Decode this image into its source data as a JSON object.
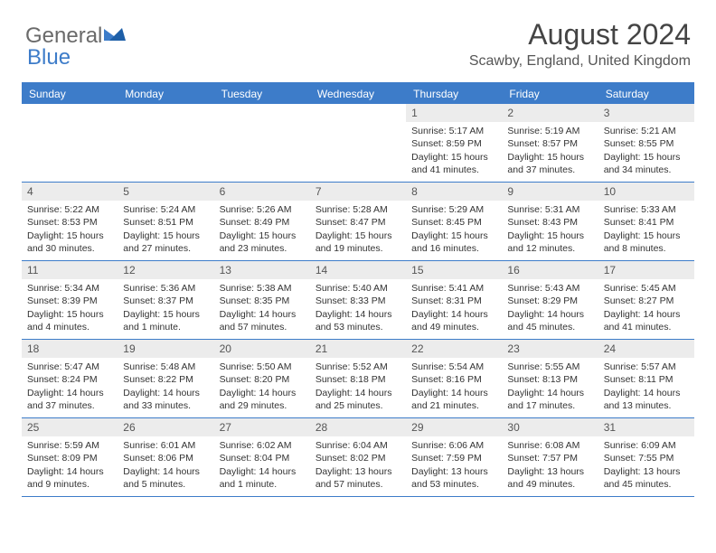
{
  "brand": {
    "part1": "General",
    "part2": "Blue"
  },
  "title": "August 2024",
  "location": "Scawby, England, United Kingdom",
  "colors": {
    "accent": "#3d7cc9",
    "text": "#333333",
    "muted": "#6a6a6a",
    "dayNumBg": "#ececec",
    "background": "#ffffff"
  },
  "daysOfWeek": [
    "Sunday",
    "Monday",
    "Tuesday",
    "Wednesday",
    "Thursday",
    "Friday",
    "Saturday"
  ],
  "weeks": [
    [
      {
        "empty": true
      },
      {
        "empty": true
      },
      {
        "empty": true
      },
      {
        "empty": true
      },
      {
        "num": "1",
        "sunrise": "Sunrise: 5:17 AM",
        "sunset": "Sunset: 8:59 PM",
        "daylight": "Daylight: 15 hours and 41 minutes."
      },
      {
        "num": "2",
        "sunrise": "Sunrise: 5:19 AM",
        "sunset": "Sunset: 8:57 PM",
        "daylight": "Daylight: 15 hours and 37 minutes."
      },
      {
        "num": "3",
        "sunrise": "Sunrise: 5:21 AM",
        "sunset": "Sunset: 8:55 PM",
        "daylight": "Daylight: 15 hours and 34 minutes."
      }
    ],
    [
      {
        "num": "4",
        "sunrise": "Sunrise: 5:22 AM",
        "sunset": "Sunset: 8:53 PM",
        "daylight": "Daylight: 15 hours and 30 minutes."
      },
      {
        "num": "5",
        "sunrise": "Sunrise: 5:24 AM",
        "sunset": "Sunset: 8:51 PM",
        "daylight": "Daylight: 15 hours and 27 minutes."
      },
      {
        "num": "6",
        "sunrise": "Sunrise: 5:26 AM",
        "sunset": "Sunset: 8:49 PM",
        "daylight": "Daylight: 15 hours and 23 minutes."
      },
      {
        "num": "7",
        "sunrise": "Sunrise: 5:28 AM",
        "sunset": "Sunset: 8:47 PM",
        "daylight": "Daylight: 15 hours and 19 minutes."
      },
      {
        "num": "8",
        "sunrise": "Sunrise: 5:29 AM",
        "sunset": "Sunset: 8:45 PM",
        "daylight": "Daylight: 15 hours and 16 minutes."
      },
      {
        "num": "9",
        "sunrise": "Sunrise: 5:31 AM",
        "sunset": "Sunset: 8:43 PM",
        "daylight": "Daylight: 15 hours and 12 minutes."
      },
      {
        "num": "10",
        "sunrise": "Sunrise: 5:33 AM",
        "sunset": "Sunset: 8:41 PM",
        "daylight": "Daylight: 15 hours and 8 minutes."
      }
    ],
    [
      {
        "num": "11",
        "sunrise": "Sunrise: 5:34 AM",
        "sunset": "Sunset: 8:39 PM",
        "daylight": "Daylight: 15 hours and 4 minutes."
      },
      {
        "num": "12",
        "sunrise": "Sunrise: 5:36 AM",
        "sunset": "Sunset: 8:37 PM",
        "daylight": "Daylight: 15 hours and 1 minute."
      },
      {
        "num": "13",
        "sunrise": "Sunrise: 5:38 AM",
        "sunset": "Sunset: 8:35 PM",
        "daylight": "Daylight: 14 hours and 57 minutes."
      },
      {
        "num": "14",
        "sunrise": "Sunrise: 5:40 AM",
        "sunset": "Sunset: 8:33 PM",
        "daylight": "Daylight: 14 hours and 53 minutes."
      },
      {
        "num": "15",
        "sunrise": "Sunrise: 5:41 AM",
        "sunset": "Sunset: 8:31 PM",
        "daylight": "Daylight: 14 hours and 49 minutes."
      },
      {
        "num": "16",
        "sunrise": "Sunrise: 5:43 AM",
        "sunset": "Sunset: 8:29 PM",
        "daylight": "Daylight: 14 hours and 45 minutes."
      },
      {
        "num": "17",
        "sunrise": "Sunrise: 5:45 AM",
        "sunset": "Sunset: 8:27 PM",
        "daylight": "Daylight: 14 hours and 41 minutes."
      }
    ],
    [
      {
        "num": "18",
        "sunrise": "Sunrise: 5:47 AM",
        "sunset": "Sunset: 8:24 PM",
        "daylight": "Daylight: 14 hours and 37 minutes."
      },
      {
        "num": "19",
        "sunrise": "Sunrise: 5:48 AM",
        "sunset": "Sunset: 8:22 PM",
        "daylight": "Daylight: 14 hours and 33 minutes."
      },
      {
        "num": "20",
        "sunrise": "Sunrise: 5:50 AM",
        "sunset": "Sunset: 8:20 PM",
        "daylight": "Daylight: 14 hours and 29 minutes."
      },
      {
        "num": "21",
        "sunrise": "Sunrise: 5:52 AM",
        "sunset": "Sunset: 8:18 PM",
        "daylight": "Daylight: 14 hours and 25 minutes."
      },
      {
        "num": "22",
        "sunrise": "Sunrise: 5:54 AM",
        "sunset": "Sunset: 8:16 PM",
        "daylight": "Daylight: 14 hours and 21 minutes."
      },
      {
        "num": "23",
        "sunrise": "Sunrise: 5:55 AM",
        "sunset": "Sunset: 8:13 PM",
        "daylight": "Daylight: 14 hours and 17 minutes."
      },
      {
        "num": "24",
        "sunrise": "Sunrise: 5:57 AM",
        "sunset": "Sunset: 8:11 PM",
        "daylight": "Daylight: 14 hours and 13 minutes."
      }
    ],
    [
      {
        "num": "25",
        "sunrise": "Sunrise: 5:59 AM",
        "sunset": "Sunset: 8:09 PM",
        "daylight": "Daylight: 14 hours and 9 minutes."
      },
      {
        "num": "26",
        "sunrise": "Sunrise: 6:01 AM",
        "sunset": "Sunset: 8:06 PM",
        "daylight": "Daylight: 14 hours and 5 minutes."
      },
      {
        "num": "27",
        "sunrise": "Sunrise: 6:02 AM",
        "sunset": "Sunset: 8:04 PM",
        "daylight": "Daylight: 14 hours and 1 minute."
      },
      {
        "num": "28",
        "sunrise": "Sunrise: 6:04 AM",
        "sunset": "Sunset: 8:02 PM",
        "daylight": "Daylight: 13 hours and 57 minutes."
      },
      {
        "num": "29",
        "sunrise": "Sunrise: 6:06 AM",
        "sunset": "Sunset: 7:59 PM",
        "daylight": "Daylight: 13 hours and 53 minutes."
      },
      {
        "num": "30",
        "sunrise": "Sunrise: 6:08 AM",
        "sunset": "Sunset: 7:57 PM",
        "daylight": "Daylight: 13 hours and 49 minutes."
      },
      {
        "num": "31",
        "sunrise": "Sunrise: 6:09 AM",
        "sunset": "Sunset: 7:55 PM",
        "daylight": "Daylight: 13 hours and 45 minutes."
      }
    ]
  ]
}
